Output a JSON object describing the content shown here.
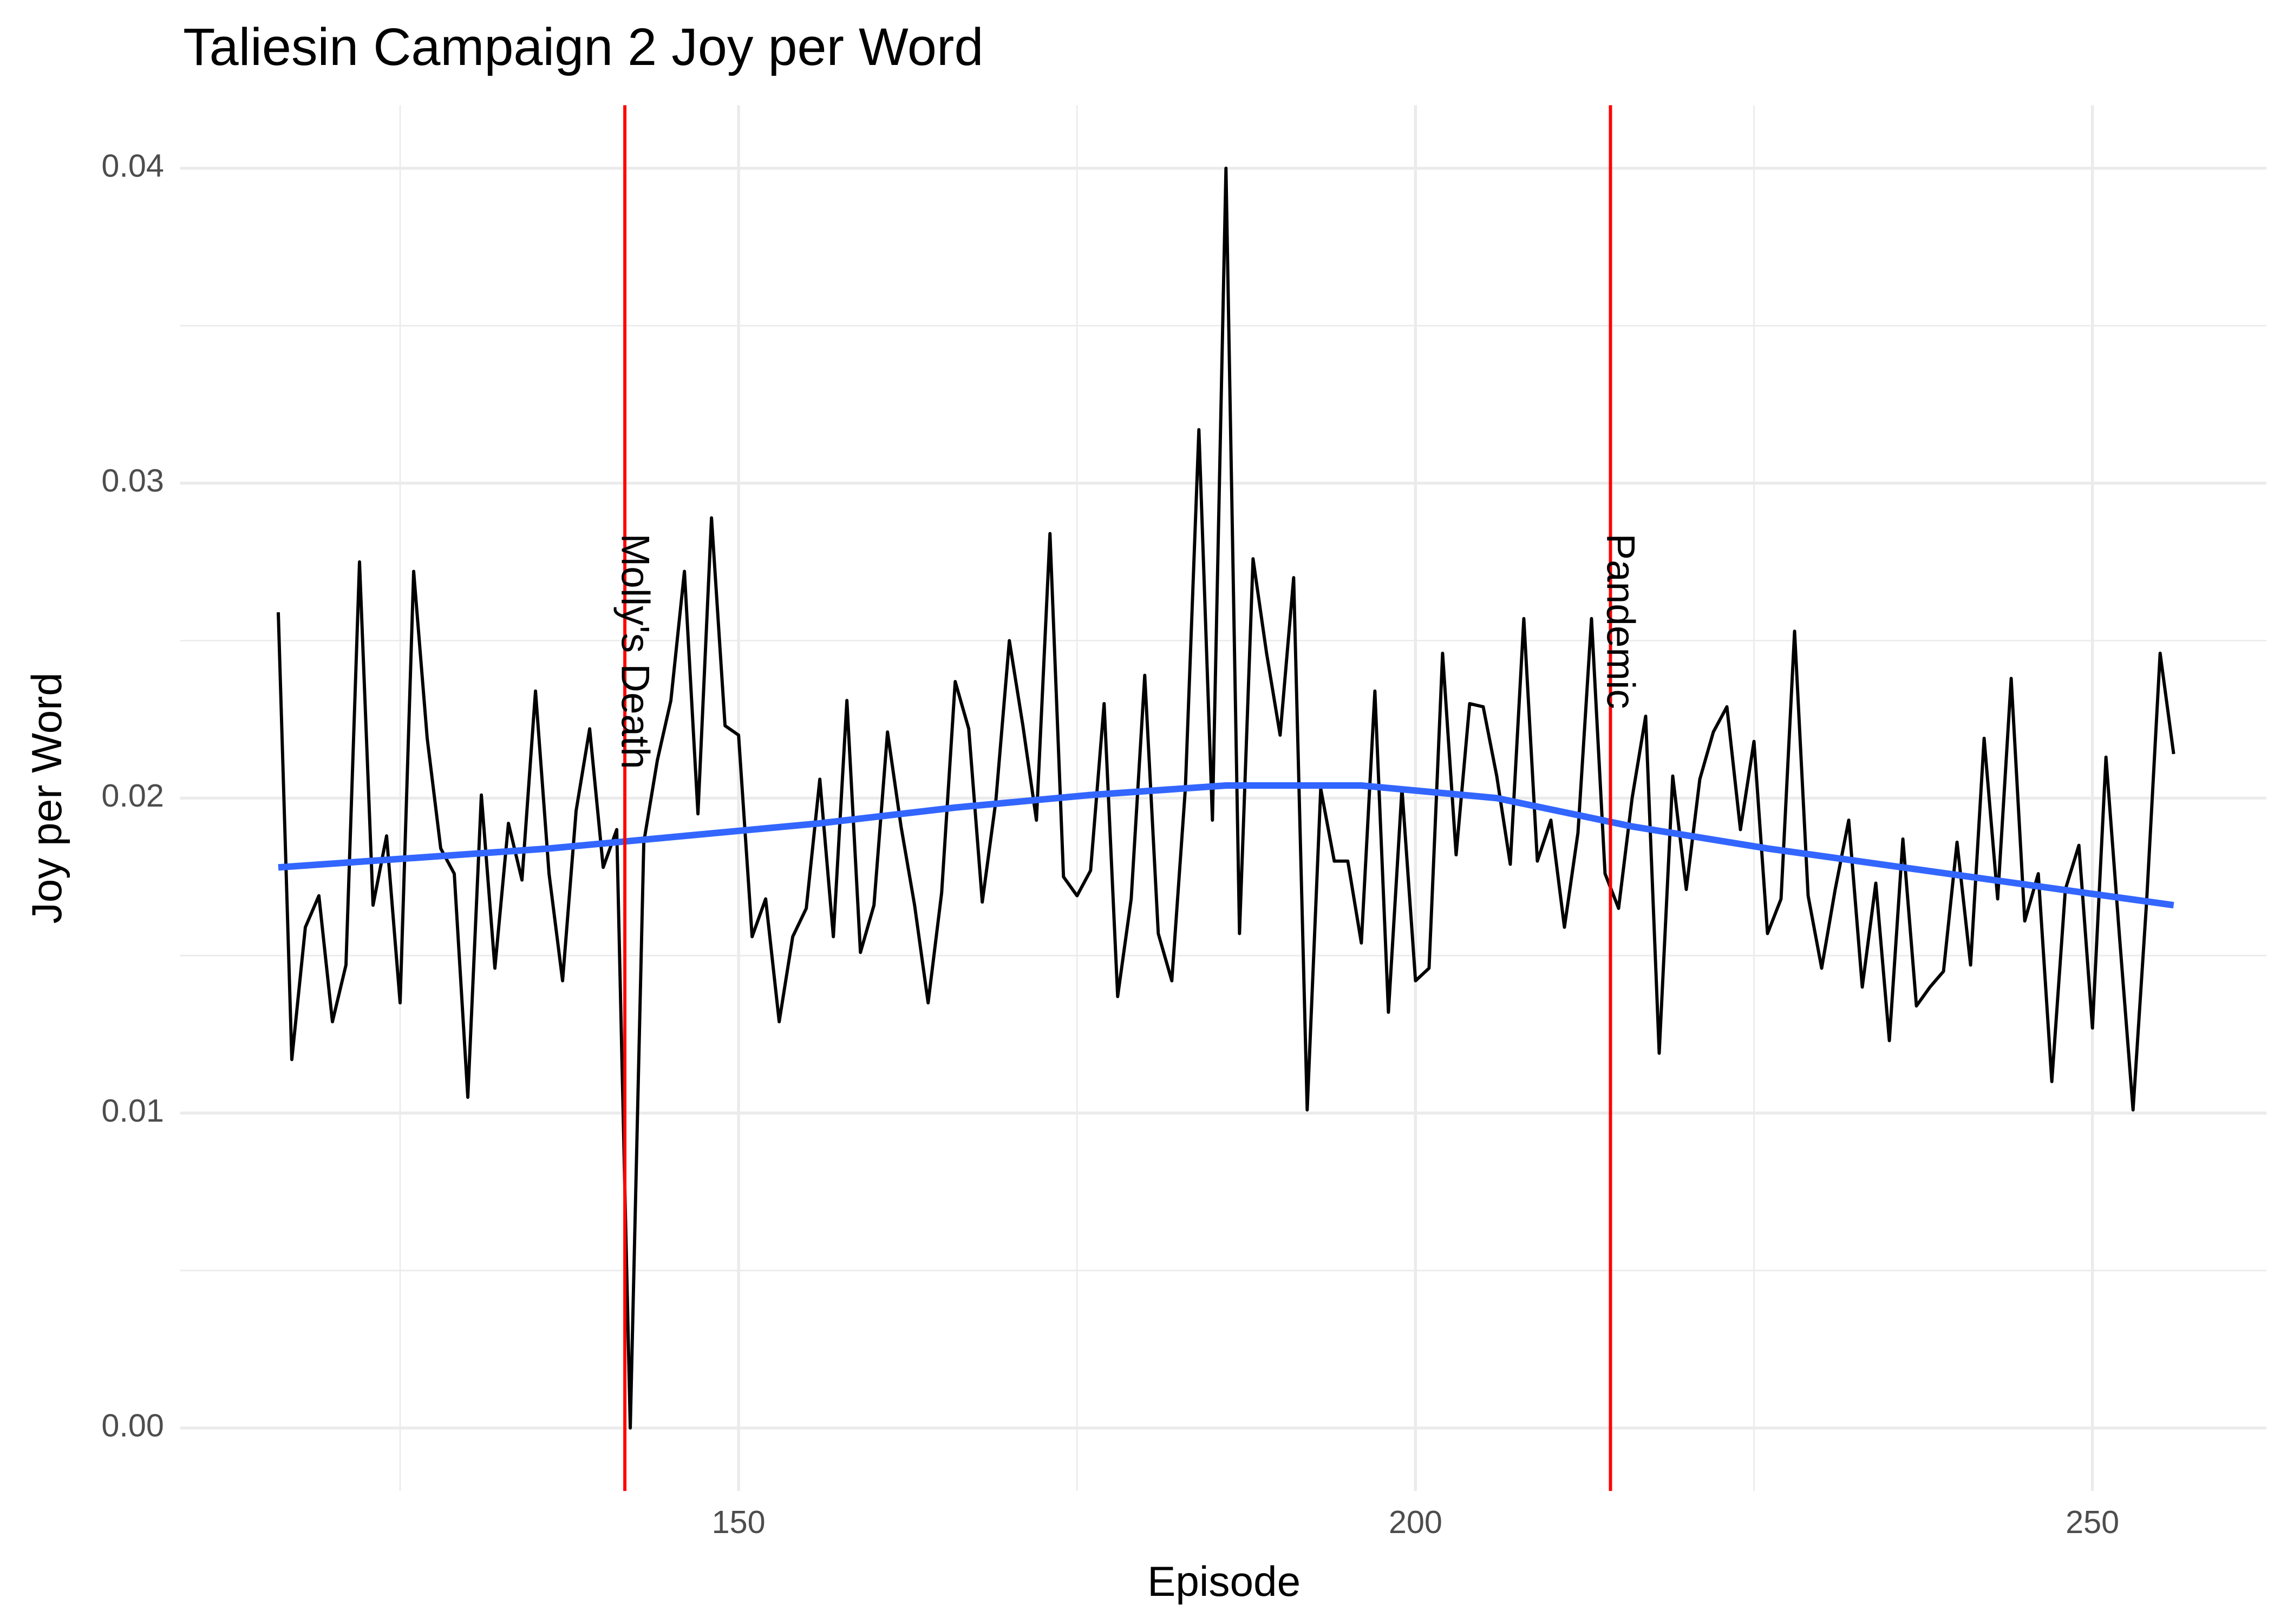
{
  "chart_data": {
    "type": "line",
    "title": "Taliesin Campaign 2 Joy per Word",
    "xlabel": "Episode",
    "ylabel": "Joy per Word",
    "x": [
      116,
      117,
      118,
      119,
      120,
      121,
      122,
      123,
      124,
      125,
      126,
      127,
      128,
      129,
      130,
      131,
      132,
      133,
      134,
      135,
      136,
      137,
      138,
      139,
      140,
      141,
      142,
      143,
      144,
      145,
      146,
      147,
      148,
      149,
      150,
      151,
      152,
      153,
      154,
      155,
      156,
      157,
      158,
      159,
      160,
      161,
      162,
      163,
      164,
      165,
      166,
      167,
      168,
      169,
      170,
      171,
      172,
      173,
      174,
      175,
      176,
      177,
      178,
      179,
      180,
      181,
      182,
      183,
      184,
      185,
      186,
      187,
      188,
      189,
      190,
      191,
      192,
      193,
      194,
      195,
      196,
      197,
      198,
      199,
      200,
      201,
      202,
      203,
      204,
      205,
      206,
      207,
      208,
      209,
      210,
      211,
      212,
      213,
      214,
      215,
      216,
      217,
      218,
      219,
      220,
      221,
      222,
      223,
      224,
      225,
      226,
      227,
      228,
      229,
      230,
      231,
      232,
      233,
      234,
      235,
      236,
      237,
      238,
      239,
      240,
      241,
      242,
      243,
      244,
      245,
      246,
      247,
      248,
      249,
      250,
      251,
      252,
      253,
      254,
      255,
      256
    ],
    "series": [
      {
        "color": "#000000",
        "values": [
          0.0259,
          0.0117,
          0.0159,
          0.0169,
          0.0129,
          0.0147,
          0.0275,
          0.0166,
          0.0188,
          0.0135,
          0.0272,
          0.0219,
          0.0184,
          0.0176,
          0.0105,
          0.0201,
          0.0146,
          0.0192,
          0.0174,
          0.0234,
          0.0176,
          0.0142,
          0.0196,
          0.0222,
          0.0178,
          0.019,
          0.0,
          0.0186,
          0.0212,
          0.0231,
          0.0272,
          0.0195,
          0.0289,
          0.0223,
          0.022,
          0.0156,
          0.0168,
          0.0129,
          0.0156,
          0.0165,
          0.0206,
          0.0156,
          0.0231,
          0.0151,
          0.0166,
          0.0221,
          0.0191,
          0.0166,
          0.0135,
          0.017,
          0.0237,
          0.0222,
          0.0167,
          0.0199,
          0.025,
          0.0223,
          0.0193,
          0.0284,
          0.0175,
          0.0169,
          0.0177,
          0.023,
          0.0137,
          0.0168,
          0.0239,
          0.0157,
          0.0142,
          0.0203,
          0.0317,
          0.0193,
          0.04,
          0.0157,
          0.0276,
          0.0246,
          0.022,
          0.027,
          0.0101,
          0.0203,
          0.018,
          0.018,
          0.0154,
          0.0234,
          0.0132,
          0.0203,
          0.0142,
          0.0146,
          0.0246,
          0.0182,
          0.023,
          0.0229,
          0.0207,
          0.0179,
          0.0257,
          0.018,
          0.0193,
          0.0159,
          0.0189,
          0.0257,
          0.0176,
          0.0165,
          0.02,
          0.0226,
          0.0119,
          0.0207,
          0.0171,
          0.0206,
          0.0221,
          0.0229,
          0.019,
          0.0218,
          0.0157,
          0.0168,
          0.0253,
          0.0169,
          0.0146,
          0.0171,
          0.0193,
          0.014,
          0.0173,
          0.0123,
          0.0187,
          0.0134,
          0.014,
          0.0145,
          0.0186,
          0.0147,
          0.0219,
          0.0168,
          0.0238,
          0.0161,
          0.0176,
          0.011,
          0.0171,
          0.0185,
          0.0127,
          0.0213,
          0.0156,
          0.0101,
          0.0167,
          0.0246,
          0.0214
        ]
      },
      {
        "color": "#3366ff",
        "x": [
          116,
          126,
          136,
          146,
          156,
          166,
          176,
          186,
          196,
          206,
          216,
          226,
          236,
          246,
          256
        ],
        "values": [
          0.0178,
          0.0181,
          0.0184,
          0.0188,
          0.0192,
          0.0197,
          0.0201,
          0.0204,
          0.0204,
          0.02,
          0.0191,
          0.0184,
          0.0178,
          0.0172,
          0.0166
        ]
      }
    ],
    "vlines": [
      {
        "x": 141.6,
        "label": "Molly's Death",
        "color": "#ff0000"
      },
      {
        "x": 214.4,
        "label": "Pandemic",
        "color": "#ff0000"
      }
    ],
    "xlim": [
      108.75,
      262.85
    ],
    "ylim": [
      -0.002,
      0.042
    ],
    "xticks": [
      150,
      200,
      250
    ],
    "yticks": [
      {
        "value": 0,
        "label": "0.00"
      },
      0.01,
      0.02,
      0.03,
      0.04
    ],
    "x_minor_ticks": [
      125,
      175,
      225
    ],
    "y_minor_ticks": [
      0.005,
      0.015,
      0.025,
      0.035
    ],
    "grid": true
  }
}
